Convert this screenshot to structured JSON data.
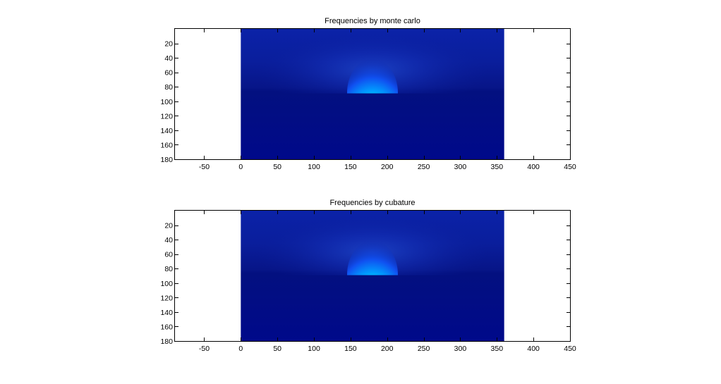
{
  "figure": {
    "background": "#ffffff"
  },
  "chart_data": [
    {
      "type": "heatmap",
      "title": "Frequencies by monte carlo",
      "xlabel": "",
      "ylabel": "",
      "xlim": [
        -90,
        450
      ],
      "ylim": [
        180,
        0
      ],
      "y_direction": "reversed",
      "x_ticks": [
        -50,
        0,
        50,
        100,
        150,
        200,
        250,
        300,
        350,
        400,
        450
      ],
      "y_ticks": [
        20,
        40,
        60,
        80,
        100,
        120,
        140,
        160,
        180
      ],
      "image_extent": {
        "x": [
          0,
          360
        ],
        "y": [
          0,
          180
        ]
      },
      "colormap": "jet",
      "peak": {
        "x": 180,
        "y": 88
      },
      "grid": false,
      "legend": "none"
    },
    {
      "type": "heatmap",
      "title": "Frequencies by cubature",
      "xlabel": "",
      "ylabel": "",
      "xlim": [
        -90,
        450
      ],
      "ylim": [
        180,
        0
      ],
      "y_direction": "reversed",
      "x_ticks": [
        -50,
        0,
        50,
        100,
        150,
        200,
        250,
        300,
        350,
        400,
        450
      ],
      "y_ticks": [
        20,
        40,
        60,
        80,
        100,
        120,
        140,
        160,
        180
      ],
      "image_extent": {
        "x": [
          0,
          360
        ],
        "y": [
          0,
          180
        ]
      },
      "colormap": "jet",
      "peak": {
        "x": 180,
        "y": 88
      },
      "grid": false,
      "legend": "none"
    }
  ]
}
